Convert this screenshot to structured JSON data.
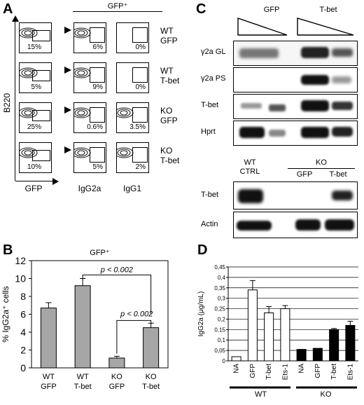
{
  "panels": {
    "a": "A",
    "b": "B",
    "c": "C",
    "d": "D"
  },
  "panel_a": {
    "gfp_plus": "GFP⁺",
    "y_axis_label": "B220",
    "col_labels": [
      "GFP",
      "IgG2a",
      "IgG1"
    ],
    "rows": [
      {
        "line1": "WT",
        "line2": "GFP",
        "pcts": [
          "15%",
          "6%",
          "0%"
        ]
      },
      {
        "line1": "WT",
        "line2": "T-bet",
        "pcts": [
          "5%",
          "9%",
          "0%"
        ]
      },
      {
        "line1": "KO",
        "line2": "GFP",
        "pcts": [
          "25%",
          "0.6%",
          "3.5%"
        ]
      },
      {
        "line1": "KO",
        "line2": "T-bet",
        "pcts": [
          "10%",
          "5%",
          "2%"
        ]
      }
    ]
  },
  "panel_b": {
    "chart_data": {
      "type": "bar",
      "title": "GFP⁺",
      "ylabel": "% IgG2a⁺ cells",
      "categories": [
        "WT GFP",
        "WT T-bet",
        "KO GFP",
        "KO T-bet"
      ],
      "cat_line1": [
        "WT",
        "WT",
        "KO",
        "KO"
      ],
      "cat_line2": [
        "GFP",
        "T-bet",
        "GFP",
        "T-bet"
      ],
      "values": [
        6.7,
        9.2,
        1.1,
        4.5
      ],
      "errors": [
        0.6,
        0.8,
        0.2,
        0.5
      ],
      "ylim": [
        0,
        12
      ],
      "yticks": [
        "0",
        "2",
        "4",
        "6",
        "8",
        "10",
        "12"
      ],
      "annotations": [
        "p < 0.002",
        "p < 0.002"
      ],
      "bar_color": "#a6a6a6"
    }
  },
  "panel_c": {
    "top_headers": [
      "GFP",
      "T-bet"
    ],
    "gel_labels": [
      "γ2a GL",
      "γ2a PS",
      "T-bet",
      "Hprt"
    ],
    "bottom_headers": {
      "wt": "WT",
      "ctrl": "CTRL",
      "ko": "KO",
      "gfp": "GFP",
      "tbet": "T-bet"
    },
    "blot_labels": [
      "T-bet",
      "Actin"
    ]
  },
  "panel_d": {
    "chart_data": {
      "type": "bar",
      "ylabel": "IgG2a (μg/mL)",
      "categories": [
        "NA",
        "GFP",
        "T-bet",
        "Ets-1",
        "NA",
        "GFP",
        "T-bet",
        "Ets-1"
      ],
      "values": [
        0.02,
        0.34,
        0.23,
        0.25,
        0.055,
        0.06,
        0.15,
        0.17
      ],
      "errors": [
        0.0,
        0.045,
        0.03,
        0.015,
        0.0,
        0.0,
        0.005,
        0.02
      ],
      "groups": [
        "WT",
        "WT",
        "WT",
        "WT",
        "KO",
        "KO",
        "KO",
        "KO"
      ],
      "group_labels": [
        "WT",
        "KO"
      ],
      "ylim": [
        0,
        0.45
      ],
      "yticks": [
        "0",
        "0,05",
        "0,1",
        "0,15",
        "0,2",
        "0,25",
        "0,3",
        "0,35",
        "0,4",
        "0,45"
      ],
      "colors": {
        "WT": "#ffffff",
        "KO": "#000000"
      },
      "grid": true
    }
  }
}
